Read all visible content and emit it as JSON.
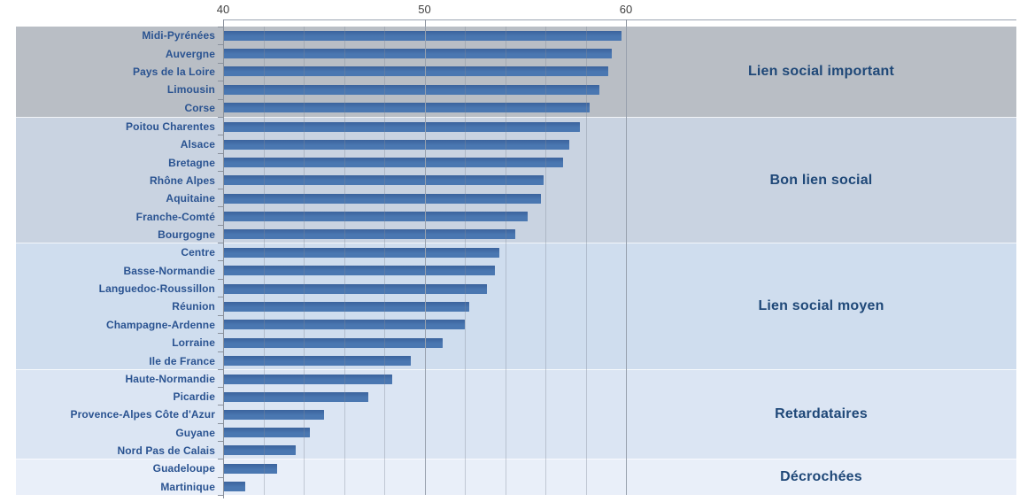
{
  "chart_data": {
    "type": "bar",
    "orientation": "horizontal",
    "title": "",
    "xlabel": "",
    "ylabel": "",
    "axis": {
      "min": 40,
      "max": 60,
      "ticks": [
        40,
        50,
        60
      ],
      "minor_step": 2,
      "position": "top",
      "grid": true
    },
    "legend": "none",
    "colors": {
      "bar": "#4673AC",
      "region_label": "#2A5391",
      "group_label": "#1F4878",
      "axis_text": "#3F3F3F"
    },
    "groups": [
      {
        "label": "Lien social important",
        "band_color": "#b9bec5",
        "rows": [
          {
            "region": "Midi-Pyrénées",
            "value": 59.8
          },
          {
            "region": "Auvergne",
            "value": 59.3
          },
          {
            "region": "Pays de la Loire",
            "value": 59.1
          },
          {
            "region": "Limousin",
            "value": 58.7
          },
          {
            "region": "Corse",
            "value": 58.2
          }
        ]
      },
      {
        "label": "Bon lien social",
        "band_color": "#c9d3e1",
        "rows": [
          {
            "region": "Poitou Charentes",
            "value": 57.7
          },
          {
            "region": "Alsace",
            "value": 57.2
          },
          {
            "region": "Bretagne",
            "value": 56.9
          },
          {
            "region": "Rhône Alpes",
            "value": 55.9
          },
          {
            "region": "Aquitaine",
            "value": 55.8
          },
          {
            "region": "Franche-Comté",
            "value": 55.1
          },
          {
            "region": "Bourgogne",
            "value": 54.5
          }
        ]
      },
      {
        "label": "Lien social moyen",
        "band_color": "#cfddee",
        "rows": [
          {
            "region": "Centre",
            "value": 53.7
          },
          {
            "region": "Basse-Normandie",
            "value": 53.5
          },
          {
            "region": "Languedoc-Roussillon",
            "value": 53.1
          },
          {
            "region": "Réunion",
            "value": 52.2
          },
          {
            "region": "Champagne-Ardenne",
            "value": 52.0
          },
          {
            "region": "Lorraine",
            "value": 50.9
          },
          {
            "region": "Ile de France",
            "value": 49.3
          }
        ]
      },
      {
        "label": "Retardataires",
        "band_color": "#dbe5f3",
        "rows": [
          {
            "region": "Haute-Normandie",
            "value": 48.4
          },
          {
            "region": "Picardie",
            "value": 47.2
          },
          {
            "region": "Provence-Alpes Côte d'Azur",
            "value": 45.0
          },
          {
            "region": "Guyane",
            "value": 44.3
          },
          {
            "region": "Nord Pas de Calais",
            "value": 43.6
          }
        ]
      },
      {
        "label": "Décrochées",
        "band_color": "#e9eff9",
        "rows": [
          {
            "region": "Guadeloupe",
            "value": 42.7
          },
          {
            "region": "Martinique",
            "value": 41.1
          }
        ]
      }
    ]
  }
}
